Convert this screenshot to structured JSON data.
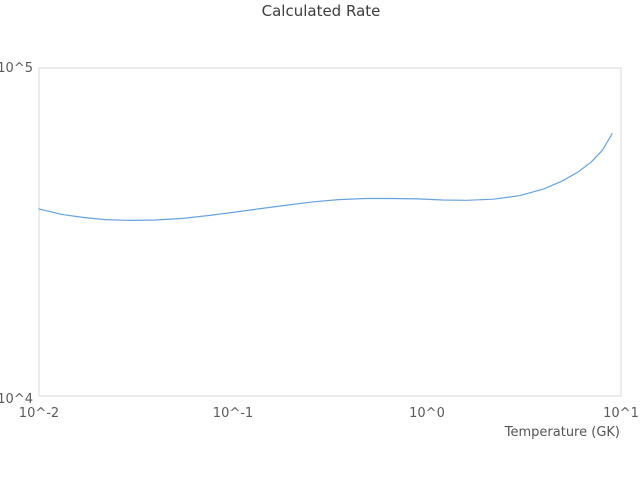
{
  "title": "Calculated Rate",
  "colors": {
    "line": "#68a2de",
    "plot_border": "#d9d9d9",
    "title_text": "#3d3d3d",
    "tick_text": "#5a5a5a",
    "background": "#ffffff"
  },
  "chart_data": {
    "type": "line",
    "title": "Calculated Rate",
    "xlabel": "Temperature (GK)",
    "ylabel": "",
    "x_scale": "log",
    "y_scale": "log",
    "xlim": [
      0.01,
      10
    ],
    "ylim": [
      10000,
      100000
    ],
    "grid": false,
    "legend": "none",
    "x_tick_labels": [
      "10^-2",
      "10^-1",
      "10^0",
      "10^1"
    ],
    "x_tick_values": [
      0.01,
      0.1,
      1,
      10
    ],
    "y_tick_labels": [
      "10^4",
      "10^5"
    ],
    "y_tick_values": [
      10000,
      100000
    ],
    "series": [
      {
        "name": "Calculated Rate",
        "x": [
          0.01,
          0.013,
          0.017,
          0.022,
          0.03,
          0.04,
          0.055,
          0.075,
          0.1,
          0.14,
          0.19,
          0.26,
          0.35,
          0.48,
          0.65,
          0.9,
          1.2,
          1.6,
          2.2,
          3.0,
          4.0,
          5.0,
          6.0,
          7.0,
          8.0,
          9.0
        ],
        "y": [
          37200,
          35800,
          35000,
          34500,
          34300,
          34400,
          34800,
          35500,
          36300,
          37300,
          38200,
          39100,
          39700,
          40000,
          40000,
          39900,
          39600,
          39500,
          39800,
          40800,
          42800,
          45300,
          48200,
          51600,
          56000,
          63000
        ]
      }
    ]
  }
}
